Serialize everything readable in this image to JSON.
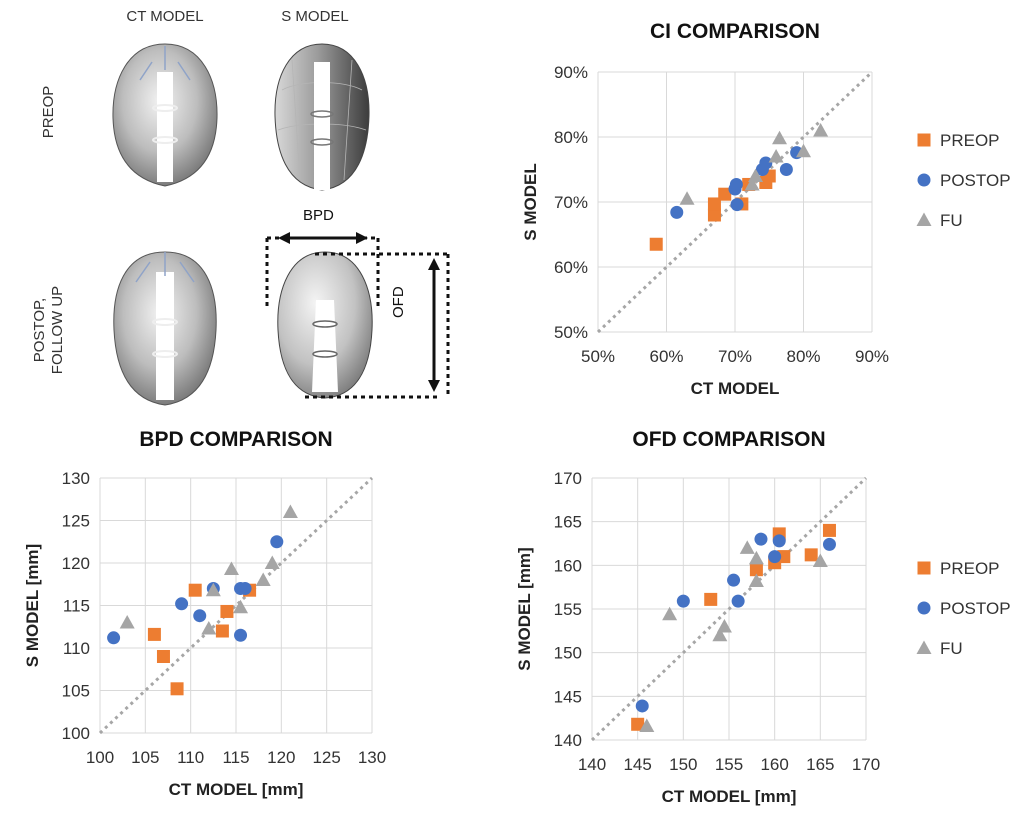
{
  "figure": {
    "col_labels": [
      "CT MODEL",
      "S MODEL"
    ],
    "row_labels": [
      "PREOP",
      "POSTOP,\nFOLLOW UP"
    ],
    "dim_labels": {
      "bpd": "BPD",
      "ofd": "OFD"
    }
  },
  "colors": {
    "PREOP": "#ED7D31",
    "POSTOP": "#4472C4",
    "FU": "#A5A5A5",
    "grid": "#d9d9d9",
    "diag": "#a6a6a6"
  },
  "chart_data": [
    {
      "id": "ci",
      "type": "scatter",
      "title": "CI COMPARISON",
      "xlabel": "CT MODEL",
      "ylabel": "S MODEL",
      "xlim": [
        50,
        90
      ],
      "ylim": [
        50,
        90
      ],
      "xticks": [
        50,
        60,
        70,
        80,
        90
      ],
      "yticks": [
        50,
        60,
        70,
        80,
        90
      ],
      "tick_labels_x": [
        "50%",
        "60%",
        "70%",
        "80%",
        "90%"
      ],
      "tick_labels_y": [
        "50%",
        "60%",
        "70%",
        "80%",
        "90%"
      ],
      "legend": [
        "PREOP",
        "POSTOP",
        "FU"
      ],
      "legend_position": "right",
      "diagonal": true,
      "series": [
        {
          "name": "PREOP",
          "marker": "square",
          "points": [
            [
              58.5,
              63.5
            ],
            [
              67,
              68
            ],
            [
              67,
              69.7
            ],
            [
              68.5,
              71.2
            ],
            [
              71,
              69.7
            ],
            [
              72,
              72.7
            ],
            [
              74.5,
              73
            ],
            [
              75,
              74
            ]
          ]
        },
        {
          "name": "POSTOP",
          "marker": "circle",
          "points": [
            [
              61.5,
              68.4
            ],
            [
              70,
              72
            ],
            [
              70.2,
              72.7
            ],
            [
              70.3,
              69.6
            ],
            [
              74,
              75
            ],
            [
              74.5,
              76
            ],
            [
              77.5,
              75
            ],
            [
              79,
              77.6
            ]
          ]
        },
        {
          "name": "FU",
          "marker": "triangle",
          "points": [
            [
              63,
              70.5
            ],
            [
              72.5,
              72.7
            ],
            [
              73,
              74
            ],
            [
              76,
              77
            ],
            [
              76.5,
              79.8
            ],
            [
              80,
              77.8
            ],
            [
              82.5,
              81
            ]
          ]
        }
      ]
    },
    {
      "id": "bpd",
      "type": "scatter",
      "title": "BPD COMPARISON",
      "xlabel": "CT MODEL  [mm]",
      "ylabel": "S MODEL  [mm]",
      "xlim": [
        100,
        130
      ],
      "ylim": [
        100,
        130
      ],
      "xticks": [
        100,
        105,
        110,
        115,
        120,
        125,
        130
      ],
      "yticks": [
        100,
        105,
        110,
        115,
        120,
        125,
        130
      ],
      "tick_labels_x": [
        "100",
        "105",
        "110",
        "115",
        "120",
        "125",
        "130"
      ],
      "tick_labels_y": [
        "100",
        "105",
        "110",
        "115",
        "120",
        "125",
        "130"
      ],
      "diagonal": true,
      "series": [
        {
          "name": "PREOP",
          "marker": "square",
          "points": [
            [
              106,
              111.6
            ],
            [
              107,
              109
            ],
            [
              108.5,
              105.2
            ],
            [
              110.5,
              116.8
            ],
            [
              113.5,
              112
            ],
            [
              114,
              114.3
            ],
            [
              116.5,
              116.8
            ]
          ]
        },
        {
          "name": "POSTOP",
          "marker": "circle",
          "points": [
            [
              101.5,
              111.2
            ],
            [
              109,
              115.2
            ],
            [
              111,
              113.8
            ],
            [
              112.5,
              117
            ],
            [
              115.5,
              117
            ],
            [
              116,
              117
            ],
            [
              115.5,
              111.5
            ],
            [
              119.5,
              122.5
            ]
          ]
        },
        {
          "name": "FU",
          "marker": "triangle",
          "points": [
            [
              103,
              113
            ],
            [
              112,
              112.3
            ],
            [
              112.5,
              116.8
            ],
            [
              114.5,
              119.3
            ],
            [
              115.5,
              114.8
            ],
            [
              118,
              118
            ],
            [
              119,
              120
            ],
            [
              121,
              126
            ]
          ]
        }
      ]
    },
    {
      "id": "ofd",
      "type": "scatter",
      "title": "OFD COMPARISON",
      "xlabel": "CT MODEL  [mm]",
      "ylabel": "S MODEL  [mm]",
      "xlim": [
        140,
        170
      ],
      "ylim": [
        140,
        170
      ],
      "xticks": [
        140,
        145,
        150,
        155,
        160,
        165,
        170
      ],
      "yticks": [
        140,
        145,
        150,
        155,
        160,
        165,
        170
      ],
      "tick_labels_x": [
        "140",
        "145",
        "150",
        "155",
        "160",
        "165",
        "170"
      ],
      "tick_labels_y": [
        "140",
        "145",
        "150",
        "155",
        "160",
        "165",
        "170"
      ],
      "legend": [
        "PREOP",
        "POSTOP",
        "FU"
      ],
      "legend_position": "right",
      "diagonal": true,
      "series": [
        {
          "name": "PREOP",
          "marker": "square",
          "points": [
            [
              145,
              141.8
            ],
            [
              153,
              156.1
            ],
            [
              158,
              159.5
            ],
            [
              160,
              160.3
            ],
            [
              160.5,
              163.6
            ],
            [
              161,
              161
            ],
            [
              164,
              161.2
            ],
            [
              166,
              164
            ]
          ]
        },
        {
          "name": "POSTOP",
          "marker": "circle",
          "points": [
            [
              145.5,
              143.9
            ],
            [
              150,
              155.9
            ],
            [
              155.5,
              158.3
            ],
            [
              156,
              155.9
            ],
            [
              158.5,
              163
            ],
            [
              160,
              161
            ],
            [
              160.5,
              162.8
            ],
            [
              166,
              162.4
            ]
          ]
        },
        {
          "name": "FU",
          "marker": "triangle",
          "points": [
            [
              146,
              141.6
            ],
            [
              148.5,
              154.4
            ],
            [
              154,
              152
            ],
            [
              154.5,
              153
            ],
            [
              157,
              162
            ],
            [
              158,
              158.2
            ],
            [
              158,
              160.8
            ],
            [
              165,
              160.5
            ]
          ]
        }
      ]
    }
  ]
}
